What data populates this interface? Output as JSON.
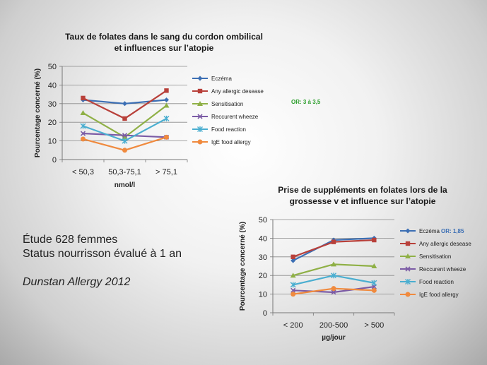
{
  "info": {
    "line1": "Étude 628 femmes",
    "line2": "Status nourrisson évalué à 1 an",
    "reference": "Dunstan Allergy 2012"
  },
  "chart_data": [
    {
      "type": "line",
      "title": [
        "Taux de folates dans le sang du cordon ombilical",
        "et influences sur l’atopie"
      ],
      "xlabel": "nmol/l",
      "ylabel": "Pourcentage concerné (%)",
      "ylim": [
        0,
        50
      ],
      "yticks": [
        0,
        10,
        20,
        30,
        40,
        50
      ],
      "categories": [
        "< 50,3",
        "50,3-75,1",
        "> 75,1"
      ],
      "grid": true,
      "legend": "right",
      "annotation": {
        "text": "OR: 3 à 3,5",
        "color": "#2a9d2a"
      },
      "series": [
        {
          "name": "Eczéma",
          "values": [
            32,
            30,
            32
          ],
          "color": "#3c6fb4",
          "marker": "diamond"
        },
        {
          "name": "Any allergic desease",
          "values": [
            33,
            22,
            37
          ],
          "color": "#b8403a",
          "marker": "square"
        },
        {
          "name": "Sensitisation",
          "values": [
            25,
            12,
            29
          ],
          "color": "#8fb046",
          "marker": "triangle"
        },
        {
          "name": "Reccurent wheeze",
          "values": [
            14,
            13,
            12
          ],
          "color": "#7b5ba5",
          "marker": "x"
        },
        {
          "name": "Food reaction",
          "values": [
            18,
            10,
            22
          ],
          "color": "#4aaed0",
          "marker": "star"
        },
        {
          "name": "IgE food allergy",
          "values": [
            11,
            5,
            12
          ],
          "color": "#f08a3e",
          "marker": "circle"
        }
      ]
    },
    {
      "type": "line",
      "title": [
        "Prise de suppléments en folates lors de la",
        "grossesse v et influence sur l’atopie"
      ],
      "xlabel": "µg/jour",
      "ylabel": "Pourcentage concerné (%)",
      "ylim": [
        0,
        50
      ],
      "yticks": [
        0,
        10,
        20,
        30,
        40,
        50
      ],
      "categories": [
        "< 200",
        "200-500",
        "> 500"
      ],
      "grid": true,
      "legend": "right",
      "annotation": {
        "text": "OR: 1,85",
        "color": "#3c6fb4"
      },
      "series": [
        {
          "name": "Eczéma",
          "values": [
            28,
            39,
            40
          ],
          "color": "#3c6fb4",
          "marker": "diamond"
        },
        {
          "name": "Any allergic desease",
          "values": [
            30,
            38,
            39
          ],
          "color": "#b8403a",
          "marker": "square"
        },
        {
          "name": "Sensitisation",
          "values": [
            20,
            26,
            25
          ],
          "color": "#8fb046",
          "marker": "triangle"
        },
        {
          "name": "Reccurent wheeze",
          "values": [
            12,
            11,
            14
          ],
          "color": "#7b5ba5",
          "marker": "x"
        },
        {
          "name": "Food reaction",
          "values": [
            15,
            20,
            16
          ],
          "color": "#4aaed0",
          "marker": "star"
        },
        {
          "name": "IgE food allergy",
          "values": [
            10,
            13,
            12
          ],
          "color": "#f08a3e",
          "marker": "circle"
        }
      ]
    }
  ]
}
